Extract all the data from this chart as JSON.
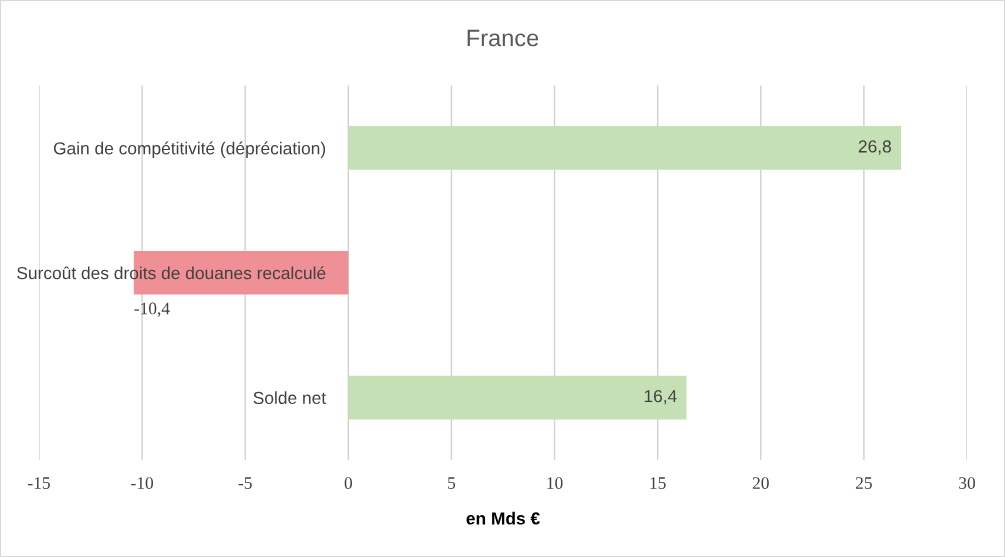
{
  "chart_data": {
    "type": "bar",
    "orientation": "horizontal",
    "title": "France",
    "xlabel": "en Mds €",
    "categories": [
      "Gain de compétitivité (dépréciation)",
      "Surcoût des droits de douanes recalculé",
      "Solde net"
    ],
    "values": [
      26.8,
      -10.4,
      16.4
    ],
    "colors": [
      "#c5e0b4",
      "#ef9096",
      "#c5e0b4"
    ],
    "value_labels": [
      "26,8",
      "-10,4",
      "16,4"
    ],
    "xlim": [
      -15,
      30
    ],
    "xticks": [
      -15,
      -10,
      -5,
      0,
      5,
      10,
      15,
      20,
      25,
      30
    ],
    "grid": "x",
    "legend": false
  }
}
